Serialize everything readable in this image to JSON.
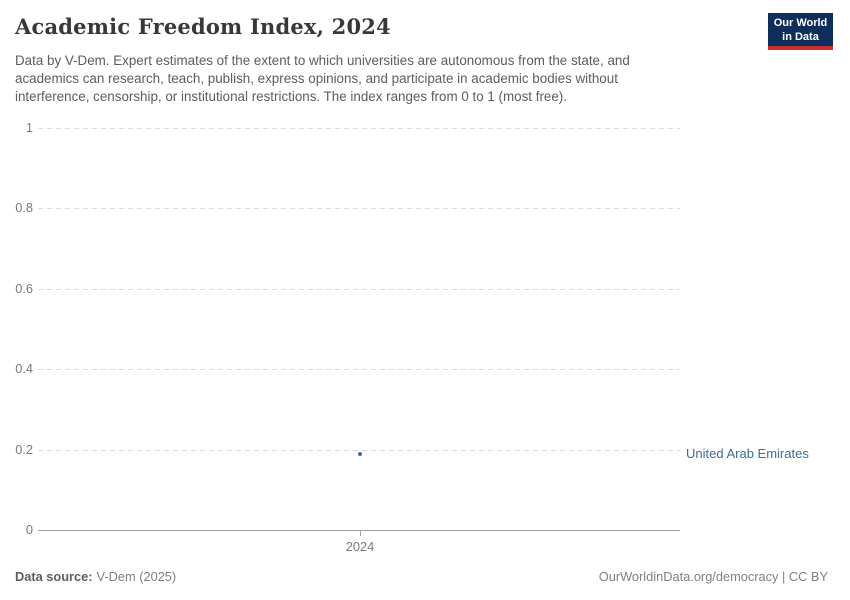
{
  "colors": {
    "accent_blue": "#3d6a9d",
    "logo_navy": "#0f2e5c",
    "logo_red": "#c9302c",
    "gridline_gray": "#dcdcdc",
    "axis_gray": "#a5a5a5",
    "title_gray": "#383838",
    "subtitle_gray": "#5c5c5c",
    "tick_gray": "#7a7a7a"
  },
  "header": {
    "title": "Academic Freedom Index, 2024",
    "subtitle_lines": [
      "Data by V-Dem. Expert estimates of the extent to which universities are autonomous from the state, and",
      "academics can research, teach, publish, express opinions, and participate in academic bodies without",
      "interference, censorship, or institutional restrictions. The index ranges from 0 to 1 (most free)."
    ],
    "logo_line1": "Our World",
    "logo_line2": "in Data"
  },
  "chart_data": {
    "type": "scatter",
    "title": "Academic Freedom Index, 2024",
    "x": [
      2024
    ],
    "xticks": [
      "2024"
    ],
    "series": [
      {
        "name": "United Arab Emirates",
        "values": [
          0.19
        ]
      }
    ],
    "xlabel": "",
    "ylabel": "",
    "ylim": [
      0,
      1
    ],
    "yticks": [
      0,
      0.2,
      0.4,
      0.6,
      0.8,
      1
    ],
    "grid": "horizontal-dashed",
    "legend_position": "entity-label-right-of-point",
    "point_color": "#3d6a9d",
    "entity_label_color": "#3d6a9d"
  },
  "footer": {
    "source_label": "Data source:",
    "source_value": "V-Dem (2025)",
    "credit": "OurWorldinData.org/democracy | CC BY"
  }
}
